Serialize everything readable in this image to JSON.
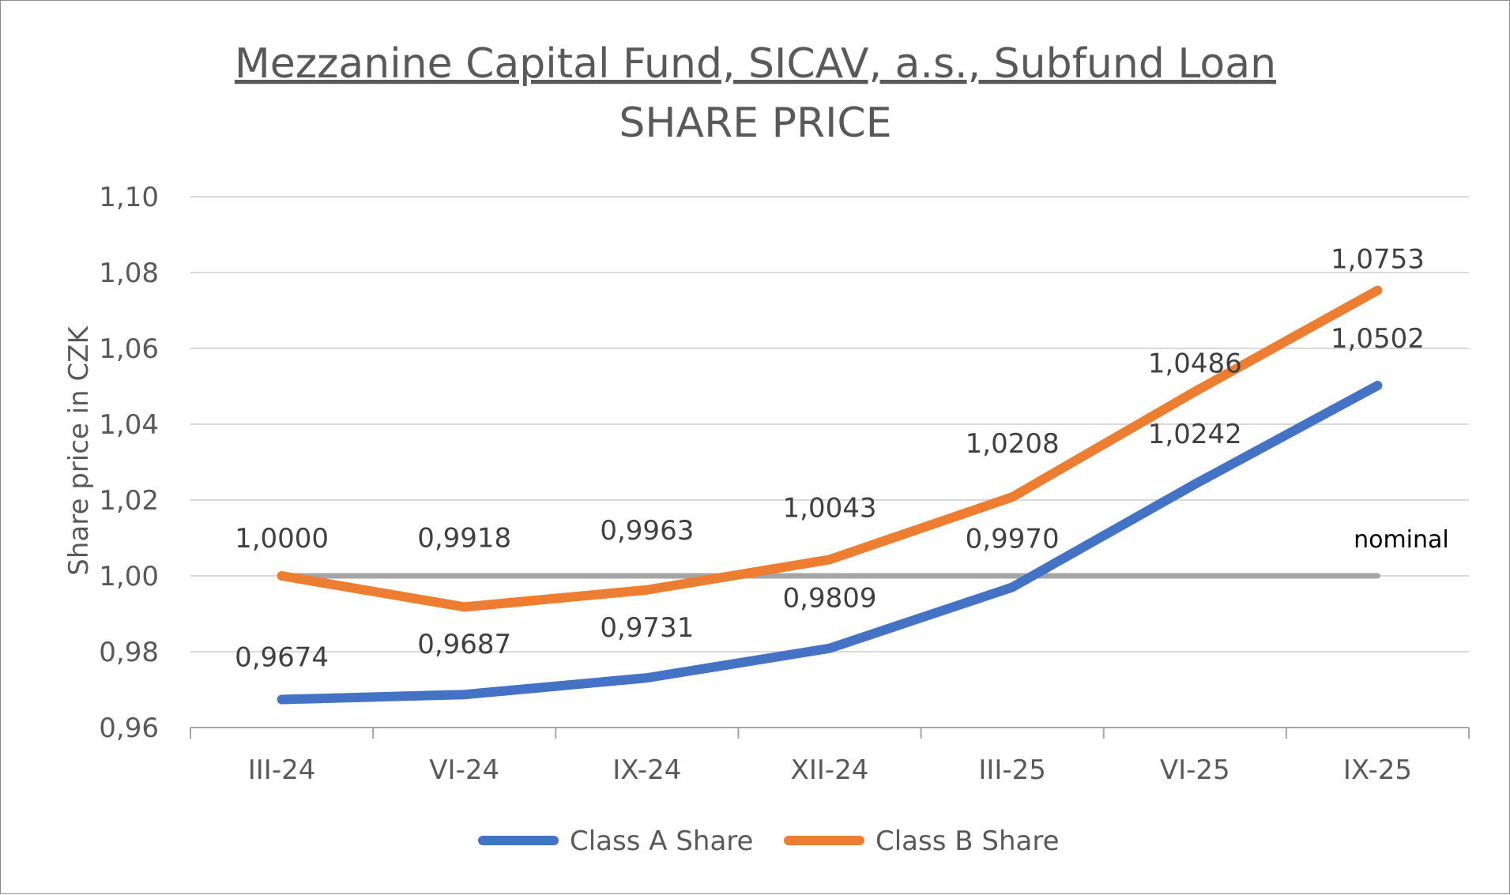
{
  "chart_data": {
    "type": "line",
    "title": "Mezzanine Capital Fund, SICAV, a.s., Subfund Loan",
    "subtitle": "SHARE PRICE",
    "xlabel": "",
    "ylabel": "Share price in CZK",
    "categories": [
      "III-24",
      "VI-24",
      "IX-24",
      "XII-24",
      "III-25",
      "VI-25",
      "IX-25"
    ],
    "ylim": [
      0.96,
      1.1
    ],
    "yticks": [
      0.96,
      0.98,
      1.0,
      1.02,
      1.04,
      1.06,
      1.08,
      1.1
    ],
    "ytick_labels": [
      "0,96",
      "0,98",
      "1,00",
      "1,02",
      "1,04",
      "1,06",
      "1,08",
      "1,10"
    ],
    "grid": true,
    "legend_position": "bottom",
    "series": [
      {
        "name": "Class A Share",
        "color": "#4472C4",
        "values": [
          0.9674,
          0.9687,
          0.9731,
          0.9809,
          0.997,
          1.0242,
          1.0502
        ],
        "labels": [
          "0,9674",
          "0,9687",
          "0,9731",
          "0,9809",
          "0,9970",
          "1,0242",
          "1,0502"
        ]
      },
      {
        "name": "Class B Share",
        "color": "#ED7D31",
        "values": [
          1.0,
          0.9918,
          0.9963,
          1.0043,
          1.0208,
          1.0486,
          1.0753
        ],
        "labels": [
          "1,0000",
          "0,9918",
          "0,9963",
          "1,0043",
          "1,0208",
          "1,0486",
          "1,0753"
        ]
      }
    ],
    "reference_line": {
      "label": "nominal",
      "value": 1.0,
      "color": "#A5A5A5"
    },
    "gridline_color": "#D9D9D9"
  }
}
